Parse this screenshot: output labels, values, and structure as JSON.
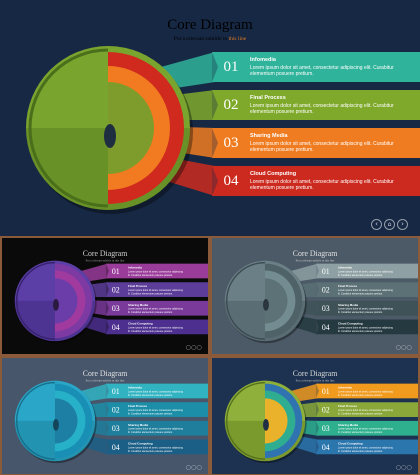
{
  "slides": [
    {
      "title": "Core Diagram",
      "subtitle_main": "Put a relevant subtitle in ",
      "subtitle_highlight": "this line",
      "items": [
        {
          "num": "01",
          "heading": "Infomedia",
          "body": "Lorem ipsum dolor sit amet, consectetur adipiscing elit. Curabitur elementum posuere pretium."
        },
        {
          "num": "02",
          "heading": "Final Process",
          "body": "Lorem ipsum dolor sit amet, consectetur adipiscing elit. Curabitur elementum posuere pretium."
        },
        {
          "num": "03",
          "heading": "Sharing Media",
          "body": "Lorem ipsum dolor sit amet, consectetur adipiscing elit. Curabitur elementum posuere pretium."
        },
        {
          "num": "04",
          "heading": "Cloud Computing",
          "body": "Lorem ipsum dolor sit amet, consectetur adipiscing elit. Curabitur elementum posuere pretium."
        }
      ],
      "nav": {
        "prev": "‹",
        "home": "⌂",
        "next": "›"
      }
    },
    {
      "title": "Core Diagram",
      "subtitle_main": "Put a relevant subtitle in this line",
      "items": [
        {
          "num": "01",
          "heading": "Infomedia",
          "body": "Lorem ipsum dolor sit amet, consectetur adipiscing elit. Curabitur elementum posuere pretium."
        },
        {
          "num": "02",
          "heading": "Final Process",
          "body": "Lorem ipsum dolor sit amet, consectetur adipiscing elit. Curabitur elementum posuere pretium."
        },
        {
          "num": "03",
          "heading": "Sharing Media",
          "body": "Lorem ipsum dolor sit amet, consectetur adipiscing elit. Curabitur elementum posuere pretium."
        },
        {
          "num": "04",
          "heading": "Cloud Computing",
          "body": "Lorem ipsum dolor sit amet, consectetur adipiscing elit. Curabitur elementum posuere pretium."
        }
      ]
    },
    {
      "title": "Core Diagram",
      "subtitle_main": "Put a relevant subtitle in this line",
      "items": [
        {
          "num": "01",
          "heading": "Infomedia",
          "body": "Lorem ipsum dolor sit amet, consectetur adipiscing elit. Curabitur elementum posuere pretium."
        },
        {
          "num": "02",
          "heading": "Final Process",
          "body": "Lorem ipsum dolor sit amet, consectetur adipiscing elit. Curabitur elementum posuere pretium."
        },
        {
          "num": "03",
          "heading": "Sharing Media",
          "body": "Lorem ipsum dolor sit amet, consectetur adipiscing elit. Curabitur elementum posuere pretium."
        },
        {
          "num": "04",
          "heading": "Cloud Computing",
          "body": "Lorem ipsum dolor sit amet, consectetur adipiscing elit. Curabitur elementum posuere pretium."
        }
      ]
    },
    {
      "title": "Core Diagram",
      "subtitle_main": "Put a relevant subtitle in this line",
      "items": [
        {
          "num": "01",
          "heading": "Infomedia",
          "body": "Lorem ipsum dolor sit amet, consectetur adipiscing elit. Curabitur elementum posuere pretium."
        },
        {
          "num": "02",
          "heading": "Final Process",
          "body": "Lorem ipsum dolor sit amet, consectetur adipiscing elit. Curabitur elementum posuere pretium."
        },
        {
          "num": "03",
          "heading": "Sharing Media",
          "body": "Lorem ipsum dolor sit amet, consectetur adipiscing elit. Curabitur elementum posuere pretium."
        },
        {
          "num": "04",
          "heading": "Cloud Computing",
          "body": "Lorem ipsum dolor sit amet, consectetur adipiscing elit. Curabitur elementum posuere pretium."
        }
      ]
    },
    {
      "title": "Core Diagram",
      "subtitle_main": "Put a relevant subtitle in this line",
      "items": [
        {
          "num": "01",
          "heading": "Infomedia",
          "body": "Lorem ipsum dolor sit amet, consectetur adipiscing elit. Curabitur elementum posuere pretium."
        },
        {
          "num": "02",
          "heading": "Final Process",
          "body": "Lorem ipsum dolor sit amet, consectetur adipiscing elit. Curabitur elementum posuere pretium."
        },
        {
          "num": "03",
          "heading": "Sharing Media",
          "body": "Lorem ipsum dolor sit amet, consectetur adipiscing elit. Curabitur elementum posuere pretium."
        },
        {
          "num": "04",
          "heading": "Cloud Computing",
          "body": "Lorem ipsum dolor sit amet, consectetur adipiscing elit. Curabitur elementum posuere pretium."
        }
      ]
    }
  ],
  "themes": [
    {
      "name": "multicolor-navy",
      "bg": "#172844",
      "title_color": "#d9d9d9",
      "sub_color": "#bfbfbf",
      "band_colors": [
        "#2fb39a",
        "#7fa92b",
        "#f07c21",
        "#cc2a1f"
      ],
      "globe": {
        "shell": "#79a52f",
        "shellDark": "#4a6e1a",
        "layer1": "#cf2a1d",
        "layer2": "#f27a20",
        "layer3": "#7e9c2c",
        "core": "#1e2d40"
      }
    },
    {
      "name": "purple-black",
      "bg": "#0a0a0a",
      "title_color": "#cfcfcf",
      "sub_color": "#9a9a9a",
      "band_colors": [
        "#9a3c9a",
        "#5c3d99",
        "#7a3a9a",
        "#4c2f8f"
      ],
      "globe": {
        "shell": "#5b3ea6",
        "shellDark": "#36226e",
        "layer1": "#7d3aa3",
        "layer2": "#a13a9e",
        "layer3": "#6a3da8",
        "core": "#2a1a40"
      }
    },
    {
      "name": "slate-gray",
      "bg": "#4c5966",
      "title_color": "#e0e0e0",
      "sub_color": "#c8c8c8",
      "band_colors": [
        "#8ea0a3",
        "#5b7176",
        "#3e5258",
        "#253a40"
      ],
      "globe": {
        "shell": "#6b7f86",
        "shellDark": "#3d4c52",
        "layer1": "#4f6268",
        "layer2": "#738c91",
        "layer3": "#5d7277",
        "core": "#2a353c"
      }
    },
    {
      "name": "cyan-navy",
      "bg": "#47566b",
      "title_color": "#e0e0e0",
      "sub_color": "#c8c8c8",
      "band_colors": [
        "#31b3c2",
        "#1c8ea8",
        "#1f7e9c",
        "#1c5f86"
      ],
      "globe": {
        "shell": "#2aa6c8",
        "shellDark": "#17708a",
        "layer1": "#1a8fb5",
        "layer2": "#27b1c8",
        "layer3": "#1e7fa5",
        "core": "#14455a"
      }
    },
    {
      "name": "green-orange-navy",
      "bg": "#1d3250",
      "title_color": "#d9d9d9",
      "sub_color": "#bfbfbf",
      "band_colors": [
        "#f09a1e",
        "#8aa83a",
        "#2eb08f",
        "#2b76ad"
      ],
      "globe": {
        "shell": "#8fb03a",
        "shellDark": "#56721b",
        "layer1": "#2f74b0",
        "layer2": "#2fad90",
        "layer3": "#e9b22a",
        "core": "#1f2f44"
      }
    }
  ]
}
